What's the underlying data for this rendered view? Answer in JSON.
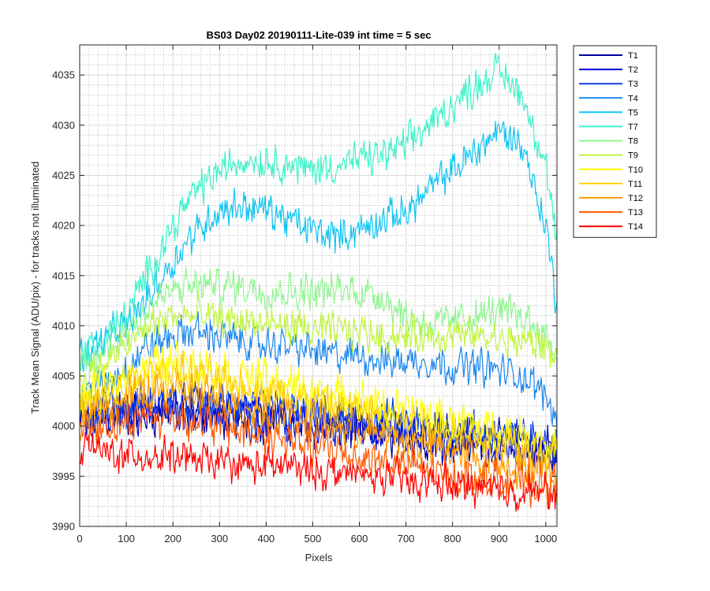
{
  "chart_data": {
    "type": "line",
    "title": "BS03 Day02 20190111-Lite-039 int time = 5 sec",
    "xlabel": "Pixels",
    "ylabel": "Track Mean Signal (ADU/pix) - for tracks not illuminated",
    "xlim": [
      0,
      1024
    ],
    "ylim": [
      3990,
      4038
    ],
    "xticks": [
      0,
      100,
      200,
      300,
      400,
      500,
      600,
      700,
      800,
      900,
      1000
    ],
    "yticks": [
      3990,
      3995,
      4000,
      4005,
      4010,
      4015,
      4020,
      4025,
      4030,
      4035
    ],
    "grid": true,
    "minor_grid": true,
    "legend_position": "outside-top-right",
    "series": [
      {
        "name": "T1",
        "color": "#0000a6",
        "noise": 1.6,
        "x": [
          0,
          100,
          200,
          300,
          400,
          500,
          600,
          700,
          800,
          900,
          1000,
          1024
        ],
        "values": [
          4000.5,
          4001.0,
          4001.5,
          4001.0,
          4000.5,
          4000.0,
          3999.5,
          3999.0,
          3998.5,
          3998.0,
          3997.5,
          3997.0
        ]
      },
      {
        "name": "T2",
        "color": "#0000d9",
        "noise": 1.6,
        "x": [
          0,
          100,
          200,
          300,
          400,
          500,
          600,
          700,
          800,
          900,
          1000,
          1024
        ],
        "values": [
          4001.0,
          4001.5,
          4002.0,
          4001.5,
          4001.0,
          4000.5,
          4000.0,
          3999.5,
          3999.0,
          3998.5,
          3998.0,
          3997.5
        ]
      },
      {
        "name": "T3",
        "color": "#0a3ee8",
        "noise": 1.6,
        "x": [
          0,
          100,
          200,
          300,
          400,
          500,
          600,
          700,
          800,
          900,
          1000,
          1024
        ],
        "values": [
          4001.5,
          4002.0,
          4002.5,
          4002.0,
          4001.5,
          4001.0,
          4000.5,
          4000.0,
          3999.5,
          3999.0,
          3998.5,
          3998.0
        ]
      },
      {
        "name": "T4",
        "color": "#1a86ee",
        "noise": 1.3,
        "x": [
          0,
          50,
          100,
          150,
          200,
          250,
          300,
          350,
          400,
          450,
          500,
          550,
          600,
          650,
          700,
          750,
          800,
          850,
          900,
          950,
          1000,
          1024
        ],
        "values": [
          4003.0,
          4004.0,
          4006.0,
          4008.0,
          4009.0,
          4009.5,
          4009.0,
          4008.5,
          4008.0,
          4008.0,
          4007.5,
          4007.0,
          4007.0,
          4006.5,
          4006.5,
          4006.5,
          4006.0,
          4006.0,
          4005.5,
          4005.0,
          4003.0,
          4001.0
        ]
      },
      {
        "name": "T5",
        "color": "#0fc4f2",
        "noise": 1.3,
        "x": [
          0,
          50,
          100,
          150,
          200,
          250,
          300,
          350,
          400,
          450,
          500,
          550,
          600,
          650,
          700,
          750,
          800,
          850,
          900,
          950,
          1000,
          1024
        ],
        "values": [
          4007.0,
          4008.5,
          4010.0,
          4013.0,
          4016.5,
          4019.5,
          4021.5,
          4022.0,
          4021.5,
          4020.5,
          4019.5,
          4019.0,
          4019.5,
          4020.5,
          4021.5,
          4023.5,
          4025.5,
          4027.5,
          4029.5,
          4028.0,
          4020.0,
          4012.0
        ]
      },
      {
        "name": "T7",
        "color": "#3df2c9",
        "noise": 1.3,
        "x": [
          0,
          50,
          100,
          150,
          200,
          250,
          300,
          350,
          400,
          450,
          500,
          550,
          600,
          650,
          700,
          750,
          800,
          850,
          900,
          950,
          1000,
          1024
        ],
        "values": [
          4007.0,
          4008.5,
          4011.0,
          4015.5,
          4020.0,
          4023.5,
          4025.5,
          4026.5,
          4026.5,
          4026.0,
          4025.5,
          4026.0,
          4026.5,
          4027.0,
          4028.0,
          4030.0,
          4032.0,
          4034.0,
          4035.5,
          4033.0,
          4026.0,
          4018.0
        ]
      },
      {
        "name": "T8",
        "color": "#8ef58e",
        "noise": 1.3,
        "x": [
          0,
          50,
          100,
          150,
          200,
          250,
          300,
          350,
          400,
          450,
          500,
          550,
          600,
          650,
          700,
          750,
          800,
          850,
          900,
          950,
          1000,
          1024
        ],
        "values": [
          4005.5,
          4007.0,
          4009.5,
          4012.0,
          4013.5,
          4014.0,
          4014.0,
          4014.0,
          4013.5,
          4013.5,
          4013.5,
          4013.5,
          4013.5,
          4013.0,
          4011.0,
          4010.0,
          4010.5,
          4011.0,
          4011.5,
          4011.0,
          4009.0,
          4007.0
        ]
      },
      {
        "name": "T9",
        "color": "#bff53d",
        "noise": 1.3,
        "x": [
          0,
          50,
          100,
          150,
          200,
          250,
          300,
          350,
          400,
          450,
          500,
          550,
          600,
          650,
          700,
          750,
          800,
          850,
          900,
          950,
          1000,
          1024
        ],
        "values": [
          4004.5,
          4006.0,
          4008.0,
          4010.0,
          4011.0,
          4011.0,
          4010.5,
          4010.5,
          4010.0,
          4010.0,
          4009.5,
          4009.5,
          4009.5,
          4009.0,
          4009.0,
          4009.0,
          4009.0,
          4009.0,
          4008.5,
          4008.5,
          4008.0,
          4007.0
        ]
      },
      {
        "name": "T10",
        "color": "#ffff00",
        "noise": 1.5,
        "x": [
          0,
          50,
          100,
          150,
          200,
          250,
          300,
          350,
          400,
          450,
          500,
          550,
          600,
          650,
          700,
          750,
          800,
          850,
          900,
          950,
          1000,
          1024
        ],
        "values": [
          4002.5,
          4003.5,
          4005.0,
          4006.0,
          4006.5,
          4006.0,
          4005.5,
          4005.0,
          4004.5,
          4004.0,
          4003.5,
          4003.0,
          4002.5,
          4002.0,
          4001.5,
          4001.0,
          4000.5,
          4000.0,
          3999.5,
          3999.0,
          3998.5,
          3998.0
        ]
      },
      {
        "name": "T11",
        "color": "#ffd200",
        "noise": 1.5,
        "x": [
          0,
          50,
          100,
          150,
          200,
          250,
          300,
          350,
          400,
          450,
          500,
          550,
          600,
          650,
          700,
          750,
          800,
          850,
          900,
          950,
          1000,
          1024
        ],
        "values": [
          4001.5,
          4002.5,
          4004.0,
          4005.0,
          4005.5,
          4005.0,
          4004.5,
          4004.0,
          4003.5,
          4003.0,
          4002.5,
          4002.0,
          4001.5,
          4001.0,
          4000.5,
          4000.0,
          3999.5,
          3999.0,
          3998.5,
          3998.0,
          3997.5,
          3997.0
        ]
      },
      {
        "name": "T12",
        "color": "#ff9e00",
        "noise": 1.5,
        "x": [
          0,
          50,
          100,
          150,
          200,
          250,
          300,
          350,
          400,
          450,
          500,
          550,
          600,
          650,
          700,
          750,
          800,
          850,
          900,
          950,
          1000,
          1024
        ],
        "values": [
          4000.5,
          4001.5,
          4002.5,
          4003.5,
          4003.5,
          4003.0,
          4002.5,
          4002.0,
          4001.5,
          4001.0,
          4000.5,
          4000.0,
          3999.5,
          3999.0,
          3998.5,
          3998.0,
          3997.5,
          3997.0,
          3996.5,
          3996.0,
          3995.5,
          3995.0
        ]
      },
      {
        "name": "T13",
        "color": "#ff5a00",
        "noise": 1.5,
        "x": [
          0,
          50,
          100,
          150,
          200,
          250,
          300,
          350,
          400,
          450,
          500,
          550,
          600,
          650,
          700,
          750,
          800,
          850,
          900,
          950,
          1000,
          1024
        ],
        "values": [
          3999.5,
          4000.0,
          4000.5,
          4001.0,
          4001.0,
          4000.5,
          4000.0,
          3999.5,
          3999.0,
          3998.5,
          3998.0,
          3997.5,
          3997.0,
          3996.5,
          3996.0,
          3995.5,
          3995.0,
          3995.0,
          3994.5,
          3994.5,
          3994.0,
          3994.0
        ]
      },
      {
        "name": "T14",
        "color": "#ff0000",
        "noise": 1.3,
        "x": [
          0,
          50,
          100,
          150,
          200,
          250,
          300,
          350,
          400,
          450,
          500,
          550,
          600,
          650,
          700,
          750,
          800,
          850,
          900,
          950,
          1000,
          1024
        ],
        "values": [
          3998.0,
          3997.5,
          3997.0,
          3997.0,
          3997.0,
          3996.5,
          3996.5,
          3996.0,
          3996.0,
          3996.0,
          3995.5,
          3995.5,
          3995.0,
          3995.0,
          3994.5,
          3994.5,
          3994.0,
          3994.0,
          3993.5,
          3993.5,
          3993.5,
          3993.0
        ]
      }
    ]
  }
}
